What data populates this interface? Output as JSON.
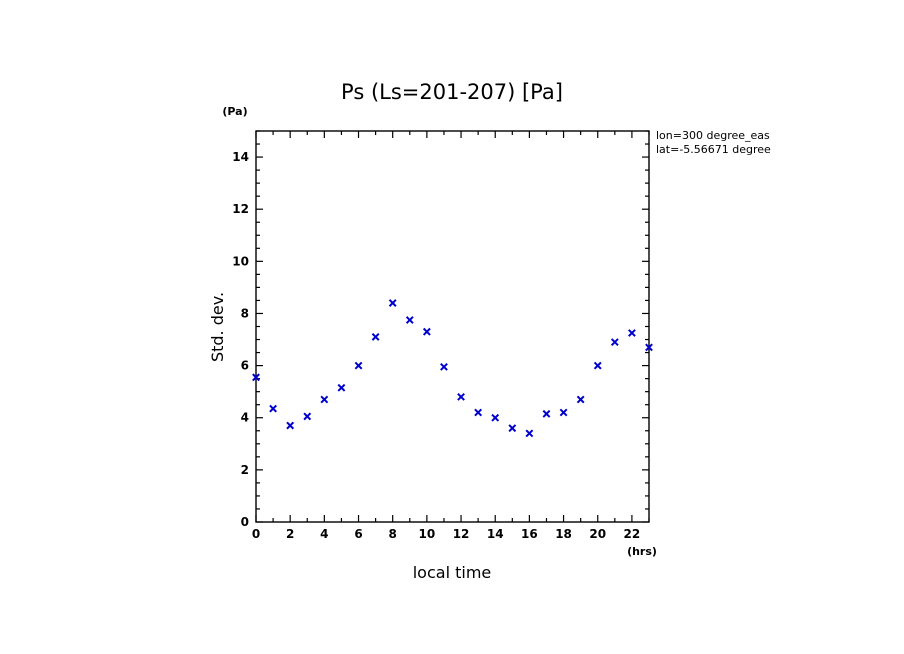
{
  "chart_data": {
    "type": "scatter",
    "title": "Ps (Ls=201-207) [Pa]",
    "xlabel": "local time",
    "ylabel": "Std. dev.",
    "x_unit": "(hrs)",
    "y_unit": "(Pa)",
    "xlim": [
      0,
      23
    ],
    "ylim": [
      0,
      15
    ],
    "x_ticks": [
      0,
      2,
      4,
      6,
      8,
      10,
      12,
      14,
      16,
      18,
      20,
      22
    ],
    "y_ticks": [
      0,
      2,
      4,
      6,
      8,
      10,
      12,
      14
    ],
    "grid": false,
    "marker": "x",
    "marker_color": "#0000cc",
    "annotations": [
      "lon=300 degree_eas",
      "lat=-5.56671 degree"
    ],
    "series": [
      {
        "x": [
          0,
          1,
          2,
          3,
          4,
          5,
          6,
          7,
          8,
          9,
          10,
          11,
          12,
          13,
          14,
          15,
          16,
          17,
          18,
          19,
          20,
          21,
          22,
          23
        ],
        "y": [
          5.55,
          4.35,
          3.7,
          4.05,
          4.7,
          5.15,
          6.0,
          7.1,
          8.4,
          7.75,
          7.3,
          5.95,
          4.8,
          4.2,
          4.0,
          3.6,
          3.4,
          4.15,
          4.2,
          4.7,
          6.0,
          6.9,
          7.25,
          6.7
        ]
      }
    ]
  }
}
